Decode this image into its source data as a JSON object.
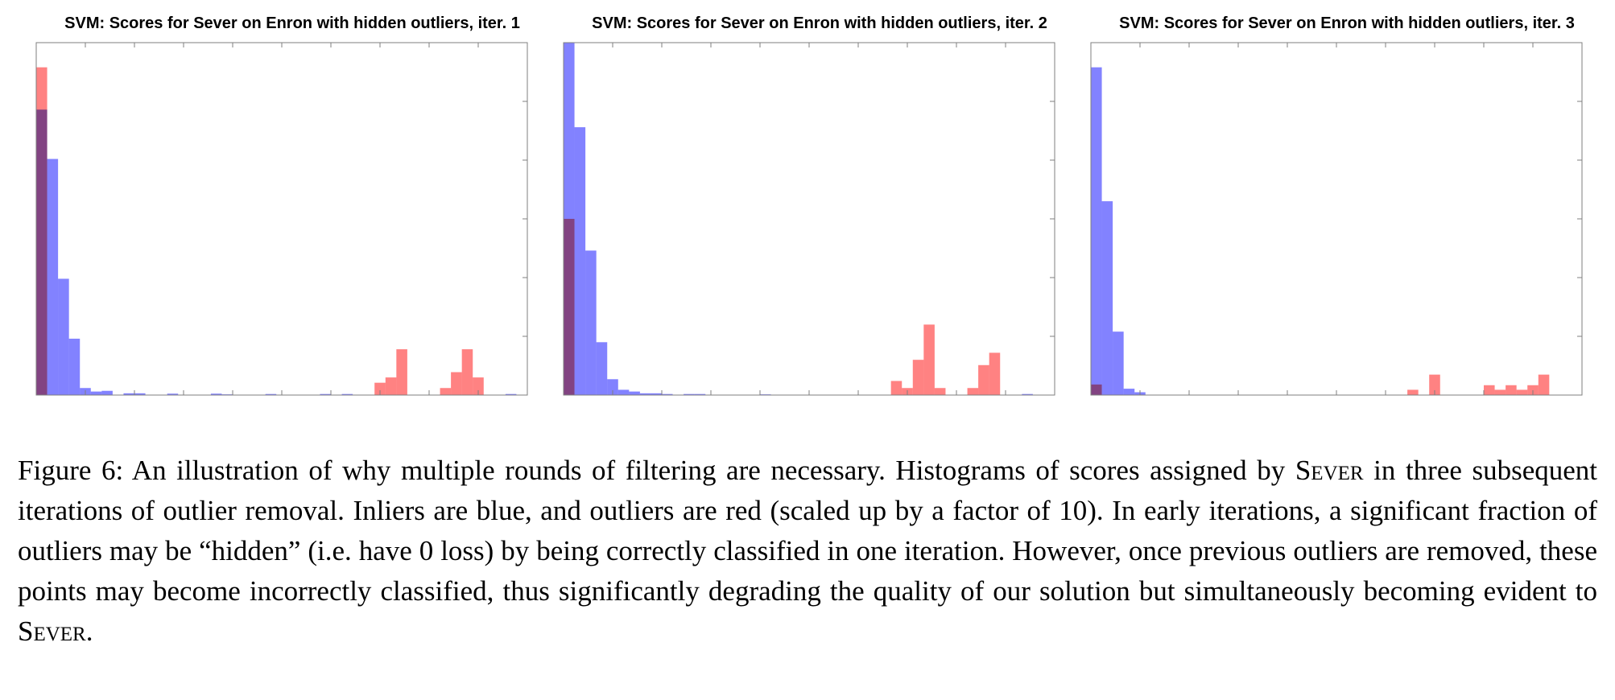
{
  "colors": {
    "inliers": "#7b7bff",
    "outliers": "#ff7b7b",
    "axes": "#7f7f7f"
  },
  "chart_data": [
    {
      "type": "bar",
      "title": "SVM: Scores for Sever on Enron with hidden outliers, iter. 1",
      "xlabel": "",
      "ylabel": "",
      "bins": 45,
      "series": [
        {
          "values": [
            0.81,
            0.67,
            0.33,
            0.16,
            0.02,
            0.01,
            0.012,
            0,
            0.005,
            0.005,
            0,
            0,
            0.004,
            0,
            0,
            0,
            0.004,
            0.002,
            0,
            0,
            0,
            0.003,
            0,
            0,
            0,
            0,
            0.003,
            0,
            0.003,
            0,
            0,
            0,
            0,
            0,
            0,
            0,
            0,
            0,
            0,
            0,
            0,
            0,
            0,
            0.003,
            0
          ]
        },
        {
          "values": [
            0.93,
            0,
            0,
            0,
            0,
            0,
            0,
            0,
            0,
            0,
            0,
            0,
            0,
            0,
            0,
            0,
            0,
            0,
            0,
            0,
            0,
            0,
            0,
            0,
            0,
            0,
            0,
            0,
            0,
            0,
            0,
            0.035,
            0.05,
            0.13,
            0,
            0,
            0,
            0.02,
            0.065,
            0.13,
            0.05,
            0,
            0,
            0,
            0
          ]
        }
      ],
      "ylim": [
        0,
        1
      ]
    },
    {
      "type": "bar",
      "title": "SVM: Scores for Sever on Enron with hidden outliers, iter. 2",
      "xlabel": "",
      "ylabel": "",
      "bins": 45,
      "series": [
        {
          "values": [
            1.0,
            0.76,
            0.41,
            0.15,
            0.045,
            0.015,
            0.01,
            0.005,
            0.005,
            0.003,
            0,
            0.003,
            0.003,
            0,
            0,
            0,
            0,
            0,
            0.002,
            0,
            0,
            0,
            0,
            0,
            0,
            0,
            0,
            0,
            0,
            0,
            0,
            0,
            0,
            0,
            0,
            0,
            0,
            0,
            0,
            0,
            0,
            0,
            0.003,
            0,
            0
          ]
        },
        {
          "values": [
            0.5,
            0,
            0,
            0,
            0,
            0,
            0,
            0,
            0,
            0,
            0,
            0,
            0,
            0,
            0,
            0,
            0,
            0,
            0,
            0,
            0,
            0,
            0,
            0,
            0,
            0,
            0,
            0,
            0,
            0,
            0.04,
            0.02,
            0.1,
            0.2,
            0.02,
            0,
            0,
            0.02,
            0.085,
            0.12,
            0,
            0,
            0,
            0,
            0
          ]
        }
      ],
      "ylim": [
        0,
        1
      ]
    },
    {
      "type": "bar",
      "title": "SVM: Scores for Sever on Enron with hidden outliers, iter. 3",
      "xlabel": "",
      "ylabel": "",
      "bins": 45,
      "series": [
        {
          "values": [
            0.93,
            0.55,
            0.18,
            0.018,
            0.008,
            0,
            0,
            0,
            0,
            0,
            0,
            0,
            0,
            0,
            0,
            0,
            0,
            0,
            0,
            0,
            0,
            0,
            0,
            0,
            0,
            0,
            0,
            0,
            0,
            0,
            0,
            0,
            0,
            0,
            0,
            0,
            0,
            0,
            0,
            0,
            0,
            0,
            0,
            0,
            0
          ]
        },
        {
          "values": [
            0.03,
            0,
            0,
            0,
            0,
            0,
            0,
            0,
            0,
            0,
            0,
            0,
            0,
            0,
            0,
            0,
            0,
            0,
            0,
            0,
            0,
            0,
            0,
            0,
            0,
            0,
            0,
            0,
            0,
            0.015,
            0,
            0.058,
            0,
            0,
            0,
            0,
            0.028,
            0.015,
            0.028,
            0.015,
            0.028,
            0.058,
            0,
            0,
            0
          ]
        }
      ],
      "ylim": [
        0,
        1
      ]
    }
  ],
  "caption": {
    "prefix": "Figure 6: An illustration of why multiple rounds of filtering are necessary. Histograms of scores assigned by ",
    "sever_1": "Sever",
    "middle": " in three subsequent iterations of outlier removal. Inliers are blue, and outliers are red (scaled up by a factor of 10). In early iterations, a significant fraction of outliers may be “hidden” (i.e. have 0 loss) by being correctly classified in one iteration. However, once previous outliers are removed, these points may become incorrectly classified, thus significantly degrading the quality of our solution but simultaneously becoming evident to ",
    "sever_2": "Sever",
    "suffix": "."
  }
}
